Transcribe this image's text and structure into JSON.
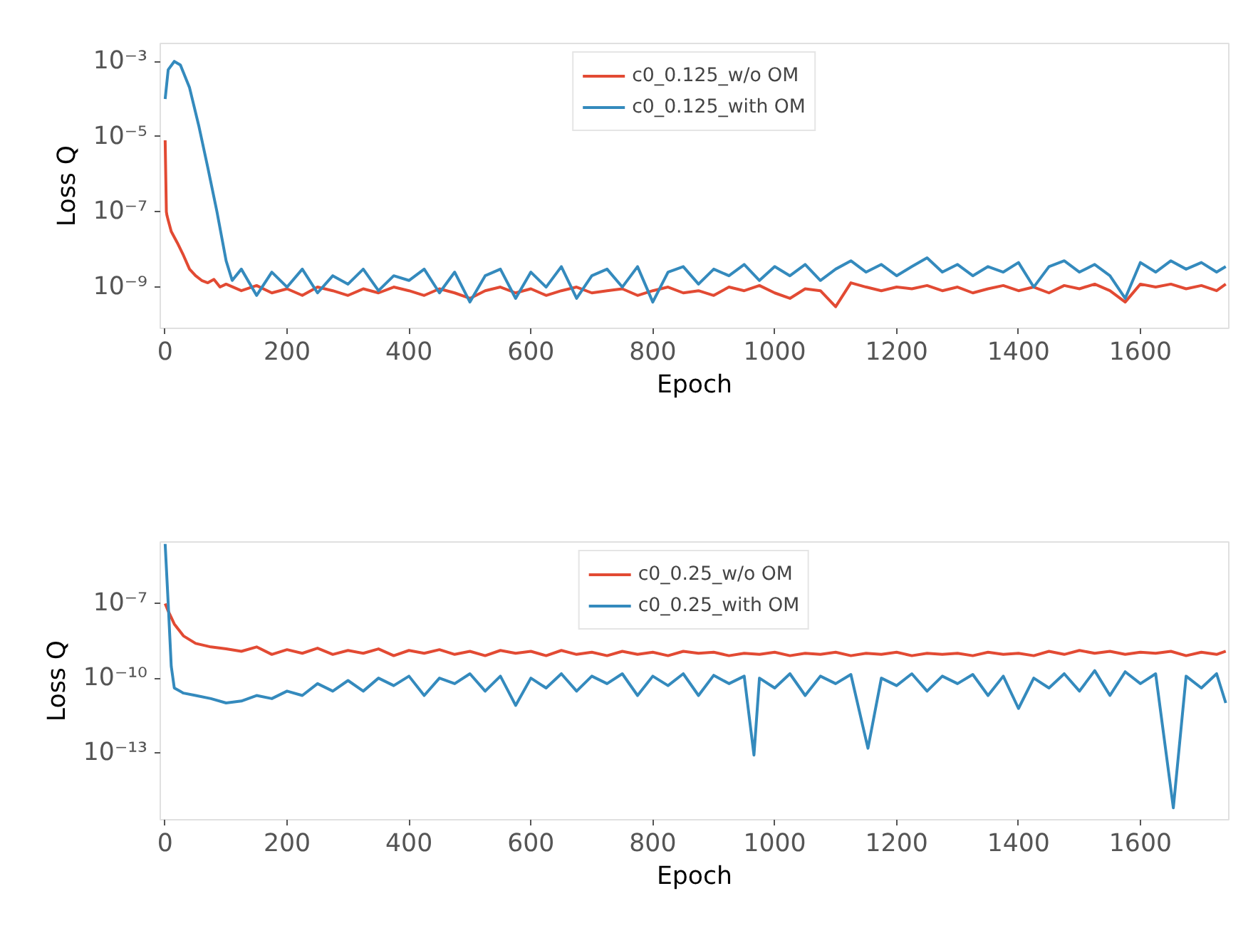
{
  "chart_data": [
    {
      "type": "line",
      "xlabel": "Epoch",
      "ylabel": "Loss Q",
      "log": "y",
      "grid": false,
      "legend": "top",
      "xlim": [
        -8,
        1745
      ],
      "xticks": [
        0,
        200,
        400,
        600,
        800,
        1000,
        1200,
        1400,
        1600
      ],
      "ylim": [
        8e-11,
        0.003
      ],
      "yticks": [
        {
          "value": 0.001,
          "label": "10⁻³"
        },
        {
          "value": 1e-05,
          "label": "10⁻⁵"
        },
        {
          "value": 1e-07,
          "label": "10⁻⁷"
        },
        {
          "value": 1e-09,
          "label": "10⁻⁹"
        }
      ],
      "series": [
        {
          "name": "c0_0.125_w/o OM",
          "color": "#e24a33",
          "x": [
            0,
            2,
            3,
            5,
            10,
            20,
            30,
            40,
            50,
            60,
            70,
            80,
            90,
            100,
            125,
            150,
            175,
            200,
            225,
            250,
            275,
            300,
            325,
            350,
            375,
            400,
            425,
            450,
            475,
            500,
            525,
            550,
            575,
            600,
            625,
            650,
            675,
            700,
            725,
            750,
            775,
            800,
            825,
            850,
            875,
            900,
            925,
            950,
            975,
            1000,
            1025,
            1050,
            1075,
            1100,
            1125,
            1150,
            1175,
            1200,
            1225,
            1250,
            1275,
            1300,
            1325,
            1350,
            1375,
            1400,
            1425,
            1450,
            1475,
            1500,
            1525,
            1550,
            1575,
            1600,
            1625,
            1650,
            1675,
            1700,
            1725,
            1740
          ],
          "values": [
            8e-06,
            1e-07,
            8e-08,
            6e-08,
            3e-08,
            1.5e-08,
            7e-09,
            3e-09,
            2e-09,
            1.5e-09,
            1.3e-09,
            1.6e-09,
            1e-09,
            1.2e-09,
            8e-10,
            1.1e-09,
            7e-10,
            9e-10,
            6e-10,
            1e-09,
            8e-10,
            6e-10,
            9e-10,
            7e-10,
            1e-09,
            8e-10,
            6e-10,
            9e-10,
            7e-10,
            5e-10,
            8e-10,
            1e-09,
            7e-10,
            9e-10,
            6e-10,
            8e-10,
            1e-09,
            7e-10,
            8e-10,
            9e-10,
            6e-10,
            8e-10,
            1e-09,
            7e-10,
            8e-10,
            6e-10,
            1e-09,
            8e-10,
            1.1e-09,
            7e-10,
            5e-10,
            9e-10,
            8e-10,
            3e-10,
            1.3e-09,
            1e-09,
            8e-10,
            1e-09,
            9e-10,
            1.1e-09,
            8e-10,
            1e-09,
            7e-10,
            9e-10,
            1.1e-09,
            8e-10,
            1e-09,
            7e-10,
            1.1e-09,
            9e-10,
            1.2e-09,
            8e-10,
            4e-10,
            1.2e-09,
            1e-09,
            1.2e-09,
            9e-10,
            1.1e-09,
            8e-10,
            1.2e-09
          ]
        },
        {
          "name": "c0_0.125_with OM",
          "color": "#348abd",
          "x": [
            0,
            5,
            15,
            25,
            40,
            55,
            70,
            85,
            100,
            110,
            125,
            150,
            175,
            200,
            225,
            250,
            275,
            300,
            325,
            350,
            375,
            400,
            425,
            450,
            475,
            500,
            525,
            550,
            575,
            600,
            625,
            650,
            675,
            700,
            725,
            750,
            775,
            800,
            825,
            850,
            875,
            900,
            925,
            950,
            975,
            1000,
            1025,
            1050,
            1075,
            1100,
            1125,
            1150,
            1175,
            1200,
            1225,
            1250,
            1275,
            1300,
            1325,
            1350,
            1375,
            1400,
            1425,
            1450,
            1475,
            1500,
            1525,
            1550,
            1575,
            1600,
            1625,
            1650,
            1675,
            1700,
            1725,
            1740
          ],
          "values": [
            0.0001,
            0.0006,
            0.001,
            0.0008,
            0.0002,
            2e-05,
            1.5e-06,
            1e-07,
            5e-09,
            1.5e-09,
            3e-09,
            6e-10,
            2.5e-09,
            1e-09,
            3e-09,
            7e-10,
            2e-09,
            1.2e-09,
            3e-09,
            8e-10,
            2e-09,
            1.5e-09,
            3e-09,
            7e-10,
            2.5e-09,
            4e-10,
            2e-09,
            3e-09,
            5e-10,
            2.5e-09,
            1e-09,
            3.5e-09,
            5e-10,
            2e-09,
            3e-09,
            1e-09,
            3.5e-09,
            4e-10,
            2.5e-09,
            3.5e-09,
            1.2e-09,
            3e-09,
            2e-09,
            4e-09,
            1.5e-09,
            3.5e-09,
            2e-09,
            4e-09,
            1.5e-09,
            3e-09,
            5e-09,
            2.5e-09,
            4e-09,
            2e-09,
            3.5e-09,
            6e-09,
            2.5e-09,
            4e-09,
            2e-09,
            3.5e-09,
            2.5e-09,
            4.5e-09,
            1e-09,
            3.5e-09,
            5e-09,
            2.5e-09,
            4e-09,
            2e-09,
            5e-10,
            4.5e-09,
            2.5e-09,
            5e-09,
            3e-09,
            4.5e-09,
            2.5e-09,
            3.5e-09
          ]
        }
      ]
    },
    {
      "type": "line",
      "xlabel": "Epoch",
      "ylabel": "Loss Q",
      "log": "y",
      "grid": false,
      "legend": "top",
      "xlim": [
        -8,
        1745
      ],
      "xticks": [
        0,
        200,
        400,
        600,
        800,
        1000,
        1200,
        1400,
        1600
      ],
      "ylim": [
        2e-16,
        3e-05
      ],
      "yticks": [
        {
          "value": 1e-07,
          "label": "10⁻⁷"
        },
        {
          "value": 1e-10,
          "label": "10⁻¹⁰"
        },
        {
          "value": 1e-13,
          "label": "10⁻¹³"
        }
      ],
      "series": [
        {
          "name": "c0_0.25_w/o OM",
          "color": "#e24a33",
          "x": [
            0,
            5,
            15,
            30,
            50,
            75,
            100,
            125,
            150,
            175,
            200,
            225,
            250,
            275,
            300,
            325,
            350,
            375,
            400,
            425,
            450,
            475,
            500,
            525,
            550,
            575,
            600,
            625,
            650,
            675,
            700,
            725,
            750,
            775,
            800,
            825,
            850,
            875,
            900,
            925,
            950,
            975,
            1000,
            1025,
            1050,
            1075,
            1100,
            1125,
            1150,
            1175,
            1200,
            1225,
            1250,
            1275,
            1300,
            1325,
            1350,
            1375,
            1400,
            1425,
            1450,
            1475,
            1500,
            1525,
            1550,
            1575,
            1600,
            1625,
            1650,
            1675,
            1700,
            1725,
            1740
          ],
          "values": [
            1e-07,
            5e-08,
            1.5e-08,
            5e-09,
            2.5e-09,
            1.8e-09,
            1.5e-09,
            1.2e-09,
            1.8e-09,
            9e-10,
            1.4e-09,
            1e-09,
            1.6e-09,
            9e-10,
            1.3e-09,
            1e-09,
            1.5e-09,
            8e-10,
            1.3e-09,
            1e-09,
            1.4e-09,
            9e-10,
            1.2e-09,
            8e-10,
            1.3e-09,
            1e-09,
            1.2e-09,
            8e-10,
            1.3e-09,
            9e-10,
            1.1e-09,
            8e-10,
            1.2e-09,
            9e-10,
            1.1e-09,
            8e-10,
            1.2e-09,
            1e-09,
            1.1e-09,
            8e-10,
            1e-09,
            9e-10,
            1.1e-09,
            8e-10,
            1e-09,
            9e-10,
            1.1e-09,
            8e-10,
            1e-09,
            9e-10,
            1.1e-09,
            8e-10,
            1e-09,
            9e-10,
            1e-09,
            8e-10,
            1.1e-09,
            9e-10,
            1e-09,
            8e-10,
            1.2e-09,
            9e-10,
            1.3e-09,
            1e-09,
            1.2e-09,
            9e-10,
            1.1e-09,
            1e-09,
            1.2e-09,
            8e-10,
            1.1e-09,
            9e-10,
            1.2e-09
          ]
        },
        {
          "name": "c0_0.25_with OM",
          "color": "#348abd",
          "x": [
            0,
            5,
            10,
            15,
            30,
            50,
            75,
            100,
            125,
            150,
            175,
            200,
            225,
            250,
            275,
            300,
            325,
            350,
            375,
            400,
            425,
            450,
            475,
            500,
            525,
            550,
            575,
            600,
            625,
            650,
            675,
            700,
            725,
            750,
            775,
            800,
            825,
            850,
            875,
            900,
            925,
            950,
            966,
            975,
            1000,
            1025,
            1050,
            1075,
            1100,
            1125,
            1153,
            1175,
            1200,
            1225,
            1250,
            1275,
            1300,
            1325,
            1350,
            1375,
            1400,
            1425,
            1450,
            1475,
            1500,
            1525,
            1550,
            1575,
            1600,
            1625,
            1654,
            1675,
            1700,
            1725,
            1740
          ],
          "values": [
            2.5e-05,
            1e-07,
            3e-10,
            4e-11,
            2.5e-11,
            2e-11,
            1.5e-11,
            1e-11,
            1.2e-11,
            2e-11,
            1.5e-11,
            3e-11,
            2e-11,
            6e-11,
            3e-11,
            8e-11,
            3e-11,
            1e-10,
            5e-11,
            1.2e-10,
            2e-11,
            1e-10,
            6e-11,
            1.5e-10,
            3e-11,
            1.2e-10,
            8e-12,
            1e-10,
            4e-11,
            1.5e-10,
            3e-11,
            1.2e-10,
            6e-11,
            1.5e-10,
            2e-11,
            1.2e-10,
            5e-11,
            1.5e-10,
            2e-11,
            1.3e-10,
            6e-11,
            1.2e-10,
            8e-14,
            1e-10,
            4e-11,
            1.5e-10,
            2e-11,
            1.2e-10,
            6e-11,
            1.4e-10,
            1.5e-13,
            1e-10,
            5e-11,
            1.5e-10,
            3e-11,
            1.2e-10,
            6e-11,
            1.4e-10,
            2e-11,
            1.2e-10,
            6e-12,
            1e-10,
            4e-11,
            1.5e-10,
            3e-11,
            2e-10,
            2e-11,
            1.8e-10,
            6e-11,
            1.5e-10,
            6e-16,
            1.2e-10,
            4e-11,
            1.5e-10,
            1e-11
          ]
        }
      ]
    }
  ]
}
